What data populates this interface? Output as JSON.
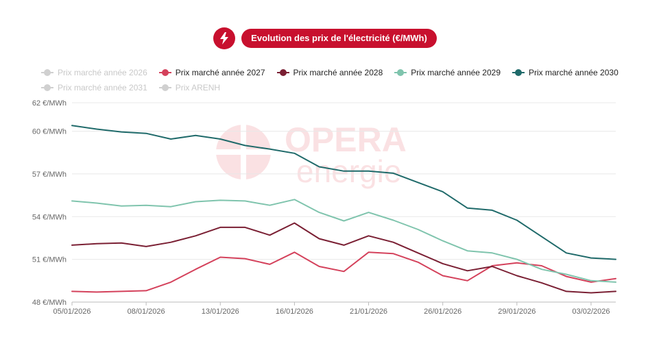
{
  "header": {
    "icon": "lightning-bolt-icon",
    "title": "Evolution des prix de l'électricité (€/MWh)",
    "accent": "#c8102e"
  },
  "watermark": {
    "line1": "OPERA",
    "line2": "energie",
    "color": "#f6c9cd"
  },
  "legend": [
    {
      "label": "Prix marché année 2026",
      "color": "#cccccc",
      "hidden": true
    },
    {
      "label": "Prix marché année 2027",
      "color": "#d4415b",
      "hidden": false
    },
    {
      "label": "Prix marché année 2028",
      "color": "#7a1f33",
      "hidden": false
    },
    {
      "label": "Prix marché année 2029",
      "color": "#7fc4ad",
      "hidden": false
    },
    {
      "label": "Prix marché année 2030",
      "color": "#1f6a6a",
      "hidden": false
    },
    {
      "label": "Prix marché année 2031",
      "color": "#cccccc",
      "hidden": true
    },
    {
      "label": "Prix ARENH",
      "color": "#cccccc",
      "hidden": true
    }
  ],
  "chart_data": {
    "type": "line",
    "ylim": [
      48,
      62
    ],
    "yticks": [
      48,
      51,
      54,
      57,
      60,
      62
    ],
    "ytick_labels": [
      "48 €/MWh",
      "51 €/MWh",
      "54 €/MWh",
      "57 €/MWh",
      "60 €/MWh",
      "62 €/MWh"
    ],
    "xtick_labels": [
      "05/01/2026",
      "08/01/2026",
      "13/01/2026",
      "16/01/2026",
      "21/01/2026",
      "26/01/2026",
      "29/01/2026",
      "03/02/2026"
    ],
    "xtick_indices": [
      0,
      3,
      6,
      9,
      12,
      15,
      18,
      21
    ],
    "n_points": 23,
    "series": [
      {
        "name": "Prix marché année 2027",
        "color": "#d4415b",
        "values": [
          48.75,
          48.7,
          48.75,
          48.8,
          49.4,
          50.3,
          51.15,
          51.05,
          50.65,
          51.5,
          50.5,
          50.15,
          51.5,
          51.4,
          50.8,
          49.85,
          49.5,
          50.55,
          50.75,
          50.55,
          49.8,
          49.4,
          49.65
        ]
      },
      {
        "name": "Prix marché année 2028",
        "color": "#7a1f33",
        "values": [
          52.0,
          52.1,
          52.15,
          51.9,
          52.2,
          52.65,
          53.25,
          53.25,
          52.7,
          53.55,
          52.45,
          52.0,
          52.65,
          52.2,
          51.45,
          50.7,
          50.2,
          50.5,
          49.85,
          49.35,
          48.75,
          48.65,
          48.75
        ]
      },
      {
        "name": "Prix marché année 2029",
        "color": "#7fc4ad",
        "values": [
          55.1,
          54.95,
          54.75,
          54.8,
          54.7,
          55.05,
          55.15,
          55.1,
          54.8,
          55.2,
          54.3,
          53.7,
          54.3,
          53.75,
          53.1,
          52.3,
          51.6,
          51.45,
          51.0,
          50.3,
          49.95,
          49.5,
          49.4
        ]
      },
      {
        "name": "Prix marché année 2030",
        "color": "#1f6a6a",
        "values": [
          60.4,
          60.15,
          59.95,
          59.85,
          59.45,
          59.7,
          59.45,
          59.0,
          58.75,
          58.45,
          57.5,
          57.2,
          57.2,
          57.05,
          56.4,
          55.75,
          54.6,
          54.45,
          53.75,
          52.6,
          51.45,
          51.1,
          51.0
        ]
      }
    ]
  }
}
